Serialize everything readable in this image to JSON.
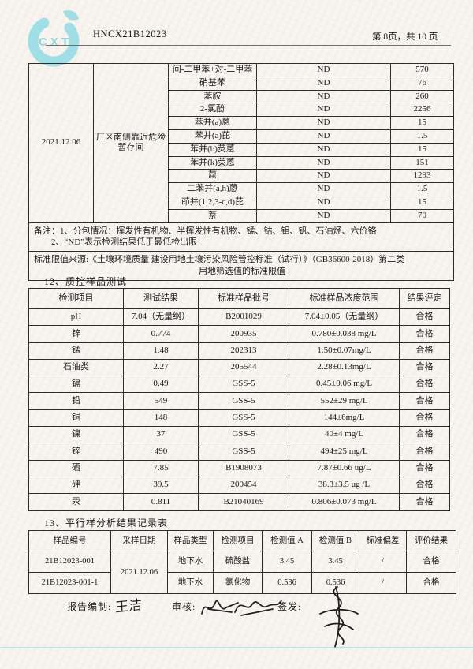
{
  "header": {
    "logo_text": "CXT",
    "report_code": "HNCX21B12023",
    "page_info": "第 8页，共 10 页"
  },
  "sample_table": {
    "sampling_date": "2021.12.06",
    "sampling_location": "厂区南侧靠近危险暂存间",
    "result_nd": "ND",
    "rows": [
      {
        "item": "间-二甲苯+对-二甲苯",
        "result": "ND",
        "limit": "570"
      },
      {
        "item": "硝基苯",
        "result": "ND",
        "limit": "76"
      },
      {
        "item": "苯胺",
        "result": "ND",
        "limit": "260"
      },
      {
        "item": "2-氯酚",
        "result": "ND",
        "limit": "2256"
      },
      {
        "item": "苯并(a)蒽",
        "result": "ND",
        "limit": "15"
      },
      {
        "item": "苯并(a)芘",
        "result": "ND",
        "limit": "1.5"
      },
      {
        "item": "苯并(b)荧蒽",
        "result": "ND",
        "limit": "15"
      },
      {
        "item": "苯并(k)荧蒽",
        "result": "ND",
        "limit": "151"
      },
      {
        "item": "䓛",
        "result": "ND",
        "limit": "1293"
      },
      {
        "item": "二苯并(a,h)蒽",
        "result": "ND",
        "limit": "1.5"
      },
      {
        "item": "茚并(1,2,3-c,d)芘",
        "result": "ND",
        "limit": "15"
      },
      {
        "item": "萘",
        "result": "ND",
        "limit": "70"
      }
    ],
    "note_line1": "备注：1、分包情况：挥发性有机物、半挥发性有机物、锰、钴、钼、钒、石油烃、六价铬",
    "note_line2": "2、“ND”表示检测结果低于最低检出限",
    "limit_source_line1": "标准限值来源:《土壤环境质量 建设用地土壤污染风险管控标准（试行）》（GB36600-2018）第二类",
    "limit_source_line2": "用地筛选值的标准限值"
  },
  "qc_section": {
    "title": "12、质控样品测试",
    "headers": [
      "检测项目",
      "测试结果",
      "标准样品批号",
      "标准样品浓度范围",
      "结果评定"
    ],
    "rows": [
      [
        "pH",
        "7.04（无量纲）",
        "B2001029",
        "7.04±0.05（无量纲）",
        "合格"
      ],
      [
        "锌",
        "0.774",
        "200935",
        "0.780±0.038 mg/L",
        "合格"
      ],
      [
        "锰",
        "1.48",
        "202313",
        "1.50±0.07mg/L",
        "合格"
      ],
      [
        "石油类",
        "2.27",
        "205544",
        "2.28±0.13mg/L",
        "合格"
      ],
      [
        "镉",
        "0.49",
        "GSS-5",
        "0.45±0.06 mg/L",
        "合格"
      ],
      [
        "铅",
        "549",
        "GSS-5",
        "552±29 mg/L",
        "合格"
      ],
      [
        "铜",
        "148",
        "GSS-5",
        "144±6mg/L",
        "合格"
      ],
      [
        "镍",
        "37",
        "GSS-5",
        "40±4 mg/L",
        "合格"
      ],
      [
        "锌",
        "490",
        "GSS-5",
        "494±25 mg/L",
        "合格"
      ],
      [
        "硒",
        "7.85",
        "B1908073",
        "7.87±0.66 ug/L",
        "合格"
      ],
      [
        "砷",
        "39.5",
        "200454",
        "38.3±3.5 ug /L",
        "合格"
      ],
      [
        "汞",
        "0.811",
        "B21040169",
        "0.806±0.073 mg/L",
        "合格"
      ]
    ]
  },
  "parallel_section": {
    "title": "13、平行样分析结果记录表",
    "headers": [
      "样品编号",
      "采样日期",
      "样品类型",
      "检测项目",
      "检测值 A",
      "检测值 B",
      "标准偏差",
      "评价结果"
    ],
    "sampling_date": "2021.12.06",
    "rows": [
      {
        "id": "21B12023-001",
        "type": "地下水",
        "item": "硫酸盐",
        "value_a": "3.45",
        "value_b": "3.45",
        "deviation": "/",
        "evaluation": "合格"
      },
      {
        "id": "21B12023-001-1",
        "type": "地下水",
        "item": "氯化物",
        "value_a": "0.536",
        "value_b": "0.536",
        "deviation": "/",
        "evaluation": "合格"
      }
    ]
  },
  "footer": {
    "prepared_label": "报告编制:",
    "prepared_by": "王洁",
    "review_label": "审核:",
    "issue_label": "签发:"
  },
  "colors": {
    "logo_cyan": "#97dde5",
    "paper": "#f8f4ef",
    "ink": "#1b1b1b"
  }
}
